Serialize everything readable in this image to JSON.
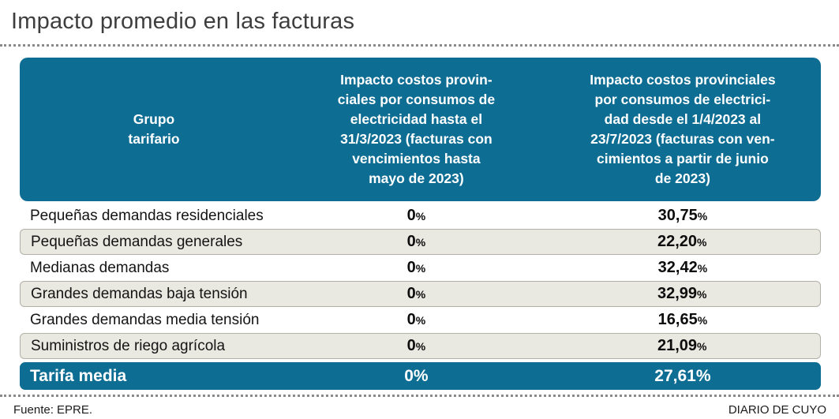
{
  "title": "Impacto promedio en las facturas",
  "colors": {
    "header_teal": "#0e6d93",
    "row_shade": "#eae9e1",
    "title_gray": "#3e3e3e",
    "dotted_rule_gray": "#8a8a8a"
  },
  "table": {
    "percent_sign": "%",
    "headers": {
      "col1": "Grupo\ntarifario",
      "col2": "Impacto costos provin-\nciales por consumos de\nelectricidad hasta el\n31/3/2023 (facturas con\nvencimientos hasta\nmayo de 2023)",
      "col3": "Impacto costos provinciales\npor consumos de electrici-\ndad desde el 1/4/2023 al\n23/7/2023 (facturas con ven-\ncimientos a partir de junio\nde 2023)"
    },
    "rows": [
      {
        "label": "Pequeñas demandas residenciales",
        "v1": "0",
        "v2": "30,75"
      },
      {
        "label": "Pequeñas demandas generales",
        "v1": "0",
        "v2": "22,20"
      },
      {
        "label": "Medianas demandas",
        "v1": "0",
        "v2": "32,42"
      },
      {
        "label": "Grandes demandas baja tensión",
        "v1": "0",
        "v2": "32,99"
      },
      {
        "label": "Grandes demandas media tensión",
        "v1": "0",
        "v2": "16,65"
      },
      {
        "label": "Suministros de riego agrícola",
        "v1": "0",
        "v2": "21,09"
      }
    ],
    "total_row": {
      "label": "Tarifa media",
      "v1": "0",
      "v2": "27,61"
    }
  },
  "footer": {
    "source": "Fuente: EPRE.",
    "credit": "DIARIO DE CUYO"
  },
  "chart_data": {
    "type": "table",
    "title": "Impacto promedio en las facturas",
    "columns": [
      "Grupo tarifario",
      "Impacto costos provinciales por consumos de electricidad hasta el 31/3/2023 (facturas con vencimientos hasta mayo de 2023)",
      "Impacto costos provinciales por consumos de electricidad desde el 1/4/2023 al 23/7/2023 (facturas con vencimientos a partir de junio de 2023)"
    ],
    "rows": [
      [
        "Pequeñas demandas residenciales",
        "0%",
        "30,75%"
      ],
      [
        "Pequeñas demandas generales",
        "0%",
        "22,20%"
      ],
      [
        "Medianas demandas",
        "0%",
        "32,42%"
      ],
      [
        "Grandes demandas baja tensión",
        "0%",
        "32,99%"
      ],
      [
        "Grandes demandas media tensión",
        "0%",
        "16,65%"
      ],
      [
        "Suministros de riego agrícola",
        "0%",
        "21,09%"
      ],
      [
        "Tarifa media",
        "0%",
        "27,61%"
      ]
    ],
    "values_numeric": {
      "hasta_31_3_2023": [
        0,
        0,
        0,
        0,
        0,
        0,
        0
      ],
      "desde_1_4_2023": [
        30.75,
        22.2,
        32.42,
        32.99,
        16.65,
        21.09,
        27.61
      ]
    },
    "source": "Fuente: EPRE.",
    "credit": "DIARIO DE CUYO"
  }
}
